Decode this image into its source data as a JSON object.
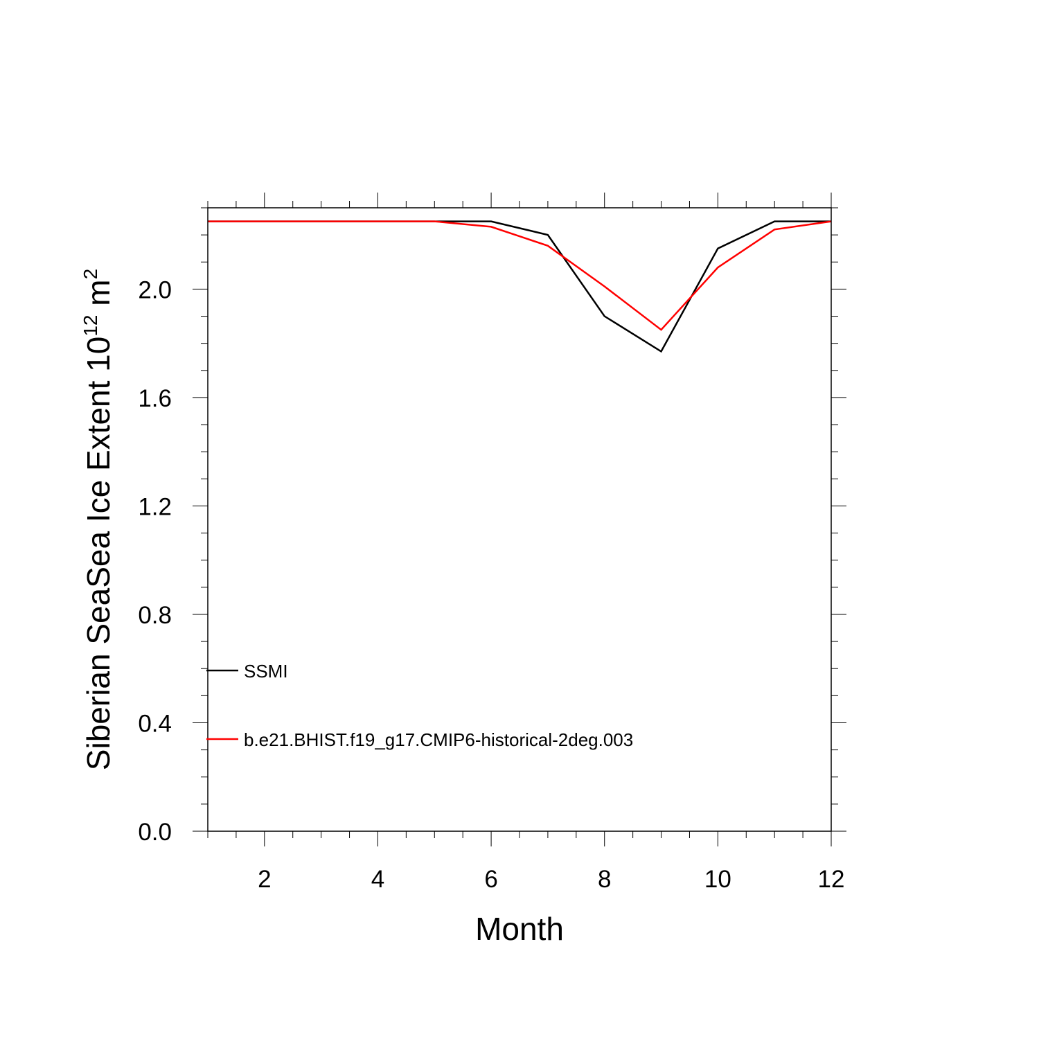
{
  "chart_data": {
    "type": "line",
    "xlabel": "Month",
    "ylabel": {
      "text": "Siberian SeaSea Ice Extent 10",
      "superscript": "12",
      "unit": " m",
      "unit_superscript": "2"
    },
    "xlim": [
      1,
      12
    ],
    "ylim": [
      0,
      2.3
    ],
    "x_ticks": [
      2,
      4,
      6,
      8,
      10,
      12
    ],
    "x_tick_labels": [
      "2",
      "4",
      "6",
      "8",
      "10",
      "12"
    ],
    "y_ticks": [
      0,
      0.4,
      0.8,
      1.2,
      1.6,
      2.0
    ],
    "y_tick_labels": [
      "0.0",
      "0.4",
      "0.8",
      "1.2",
      "1.6",
      "2.0"
    ],
    "x": [
      1,
      2,
      3,
      4,
      5,
      6,
      7,
      8,
      9,
      10,
      11,
      12
    ],
    "series": [
      {
        "name": "SSMI",
        "color": "#000000",
        "values": [
          2.25,
          2.25,
          2.25,
          2.25,
          2.25,
          2.25,
          2.2,
          1.9,
          1.77,
          2.15,
          2.25,
          2.25
        ]
      },
      {
        "name": "b.e21.BHIST.f19_g17.CMIP6-historical-2deg.003",
        "color": "#ff0000",
        "values": [
          2.25,
          2.25,
          2.25,
          2.25,
          2.25,
          2.23,
          2.16,
          2.01,
          1.85,
          2.08,
          2.22,
          2.25
        ]
      }
    ],
    "legend_placement": "inside lower-left",
    "grid": false
  }
}
